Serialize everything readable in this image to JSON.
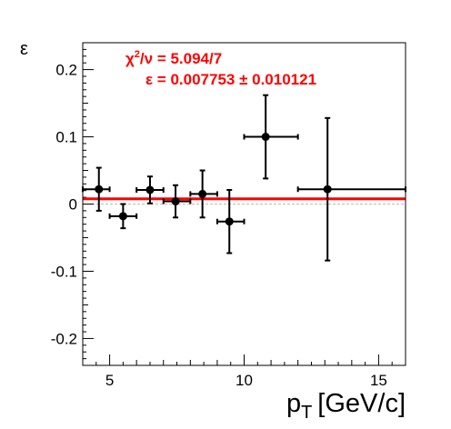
{
  "chart_data": {
    "type": "scatter",
    "title": "",
    "xlabel": "p_T [GeV/c]",
    "xlabel_main": "p",
    "xlabel_sub": "T",
    "xlabel_unit": "[GeV/c]",
    "ylabel": "ε",
    "xlim": [
      4,
      16
    ],
    "ylim": [
      -0.24,
      0.24
    ],
    "x_ticks": [
      5,
      10,
      15
    ],
    "y_ticks": [
      -0.2,
      -0.1,
      0,
      0.1,
      0.2
    ],
    "x_tick_labels": [
      "5",
      "10",
      "15"
    ],
    "y_tick_labels": [
      "-0.2",
      "-0.1",
      "0",
      "0.1",
      "0.2"
    ],
    "grid": false,
    "zero_line": true,
    "series": [
      {
        "points": [
          {
            "x": 4.6,
            "y": 0.022,
            "xerr_low": 0.6,
            "xerr_high": 0.4,
            "yerr": 0.032
          },
          {
            "x": 5.5,
            "y": -0.018,
            "xerr_low": 0.5,
            "xerr_high": 0.5,
            "yerr": 0.018
          },
          {
            "x": 6.5,
            "y": 0.021,
            "xerr_low": 0.5,
            "xerr_high": 0.5,
            "yerr": 0.02
          },
          {
            "x": 7.45,
            "y": 0.004,
            "xerr_low": 0.45,
            "xerr_high": 0.55,
            "yerr": 0.024
          },
          {
            "x": 8.45,
            "y": 0.015,
            "xerr_low": 0.45,
            "xerr_high": 0.55,
            "yerr": 0.035
          },
          {
            "x": 9.45,
            "y": -0.026,
            "xerr_low": 0.45,
            "xerr_high": 0.55,
            "yerr": 0.047
          },
          {
            "x": 10.8,
            "y": 0.1,
            "xerr_low": 0.8,
            "xerr_high": 1.2,
            "yerr": 0.062
          },
          {
            "x": 13.1,
            "y": 0.022,
            "xerr_low": 1.1,
            "xerr_high": 2.9,
            "yerr": 0.106
          }
        ]
      }
    ],
    "fit": {
      "value": 0.007753,
      "color": "#ff0000"
    },
    "annotations": {
      "chi2_chi": "χ",
      "chi2_sup": "2",
      "chi2_rest": "/ν = 5.094/7",
      "eps_text": "ε = 0.007753 ± 0.010121"
    },
    "colors": {
      "points": "#000000",
      "fit": "#ff0000",
      "annotation": "#ff0000",
      "zero_line": "#bbbbbb"
    }
  }
}
